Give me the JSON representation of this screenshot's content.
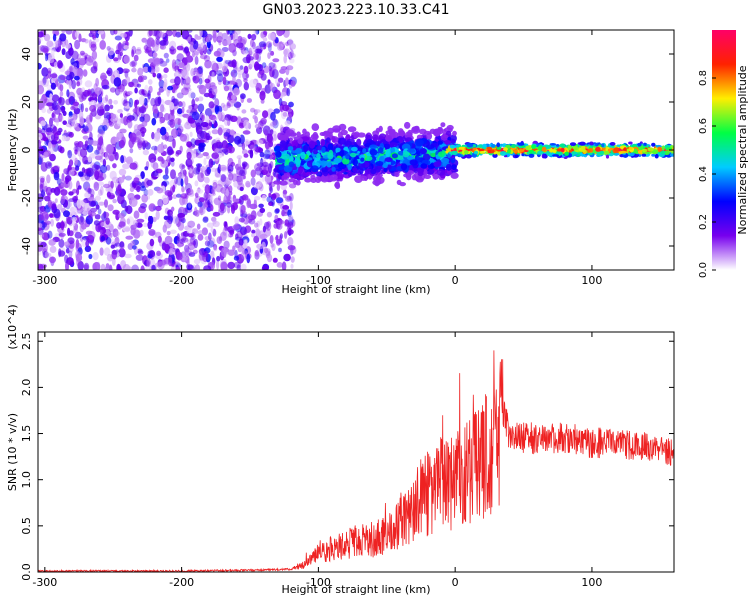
{
  "figure": {
    "title": "GN03.2023.223.10.33.C41"
  },
  "chart_data": [
    {
      "type": "heatmap",
      "xlabel": "Height of straight line (km)",
      "ylabel": "Frequency (Hz)",
      "xlim": [
        -305,
        160
      ],
      "ylim": [
        -50,
        50
      ],
      "xticks": [
        -300,
        -200,
        -100,
        0,
        100
      ],
      "yticks": [
        -40,
        -20,
        0,
        20,
        40
      ],
      "colorbar": {
        "label": "Normalized spectral amplitude",
        "range": [
          0,
          1
        ],
        "ticks": [
          "0.0",
          "0.2",
          "0.4",
          "0.6",
          "0.8"
        ],
        "colors": [
          "#ffffff",
          "#7700ee",
          "#0000ff",
          "#00ccff",
          "#00ff44",
          "#ffee00",
          "#ff2200",
          "#ff0066"
        ]
      },
      "regions": [
        {
          "x_range": [
            -305,
            -130
          ],
          "freq_range": [
            -50,
            50
          ],
          "amplitude": 0.08,
          "description": "broadband low-amplitude noise"
        },
        {
          "x_range": [
            -130,
            0
          ],
          "center_freq": -4,
          "half_width": 8,
          "amplitude": 0.45
        },
        {
          "x_range": [
            0,
            160
          ],
          "center_freq": 0,
          "half_width": 3,
          "amplitude": 0.95
        }
      ]
    },
    {
      "type": "line",
      "xlabel": "Height of straight line (km)",
      "ylabel": "SNR (10 * v/v)",
      "y_scale_label": "(x10^4)",
      "xlim": [
        -305,
        160
      ],
      "ylim": [
        0,
        2.6
      ],
      "xticks": [
        -300,
        -200,
        -100,
        0,
        100
      ],
      "yticks": [
        "0.0",
        "0.5",
        "1.0",
        "1.5",
        "2.0",
        "2.5"
      ],
      "series": [
        {
          "color": "#ee2222",
          "x": [
            -305,
            -250,
            -200,
            -150,
            -120,
            -110,
            -100,
            -90,
            -80,
            -70,
            -60,
            -50,
            -40,
            -30,
            -20,
            -10,
            0,
            10,
            20,
            30,
            35,
            40,
            60,
            80,
            100,
            120,
            140,
            160
          ],
          "y": [
            0.01,
            0.01,
            0.01,
            0.02,
            0.03,
            0.08,
            0.2,
            0.25,
            0.3,
            0.35,
            0.35,
            0.4,
            0.55,
            0.7,
            0.85,
            0.95,
            1.0,
            1.1,
            1.25,
            1.35,
            1.75,
            1.45,
            1.45,
            1.45,
            1.4,
            1.4,
            1.35,
            1.3
          ]
        }
      ]
    }
  ]
}
